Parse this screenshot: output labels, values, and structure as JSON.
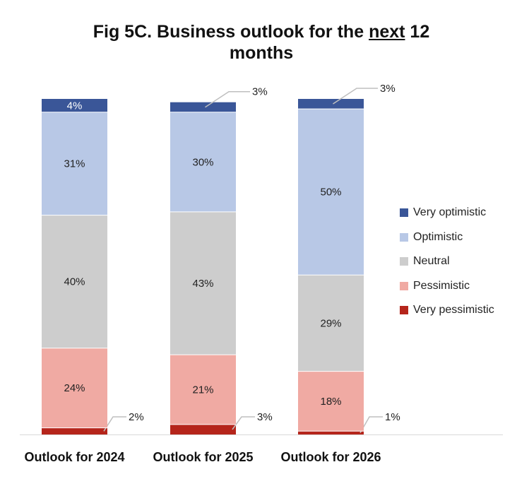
{
  "title": {
    "part1": "Fig 5C. Business outlook for the ",
    "underlined": "next",
    "part2": " 12",
    "line2": "months"
  },
  "chart_data": {
    "type": "bar",
    "stacked": true,
    "title": "Fig 5C. Business outlook for the next 12 months",
    "categories": [
      "Outlook for 2024",
      "Outlook for 2025",
      "Outlook for 2026"
    ],
    "series": [
      {
        "name": "Very pessimistic",
        "color": "#b5251b",
        "values": [
          2,
          3,
          1
        ],
        "labels": [
          "2%",
          "3%",
          "1%"
        ]
      },
      {
        "name": "Pessimistic",
        "color": "#f0aaa3",
        "values": [
          24,
          21,
          18
        ],
        "labels": [
          "24%",
          "21%",
          "18%"
        ]
      },
      {
        "name": "Neutral",
        "color": "#cdcdcd",
        "values": [
          40,
          43,
          29
        ],
        "labels": [
          "40%",
          "43%",
          "29%"
        ]
      },
      {
        "name": "Optimistic",
        "color": "#b8c8e6",
        "values": [
          31,
          30,
          50
        ],
        "labels": [
          "31%",
          "30%",
          "50%"
        ]
      },
      {
        "name": "Very optimistic",
        "color": "#3a5698",
        "values": [
          4,
          3,
          3
        ],
        "labels": [
          "4%",
          "3%",
          "3%"
        ]
      }
    ],
    "legend": [
      "Very optimistic",
      "Optimistic",
      "Neutral",
      "Pessimistic",
      "Very pessimistic"
    ],
    "ylim": [
      0,
      101
    ],
    "legend_position": "right"
  }
}
